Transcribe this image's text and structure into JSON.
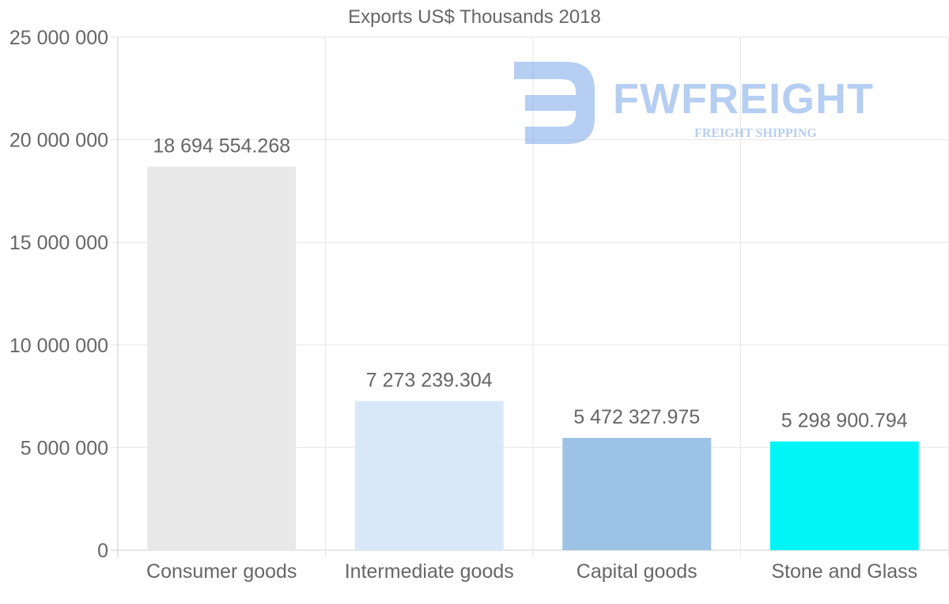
{
  "chart_data": {
    "type": "bar",
    "title": "Exports US$ Thousands 2018",
    "categories": [
      "Consumer goods",
      "Intermediate goods",
      "Capital goods",
      "Stone and Glass"
    ],
    "values": [
      18694554.268,
      7273239.304,
      5472327.975,
      5298900.794
    ],
    "value_labels": [
      "18 694 554.268",
      "7 273 239.304",
      "5 472 327.975",
      "5 298 900.794"
    ],
    "colors": [
      "#e8e8e8",
      "#d9e8f8",
      "#9cc3e6",
      "#00f6f6"
    ],
    "ylim": [
      0,
      25000000
    ],
    "yticks": [
      0,
      5000000,
      10000000,
      15000000,
      20000000,
      25000000
    ],
    "ytick_labels": [
      "0",
      "5 000 000",
      "10 000 000",
      "15 000 000",
      "20 000 000",
      "25 000 000"
    ],
    "xlabel": "",
    "ylabel": "",
    "grid": true
  },
  "watermark": {
    "brand": "FWFREIGHT",
    "tagline": "FREIGHT SHIPPING"
  }
}
